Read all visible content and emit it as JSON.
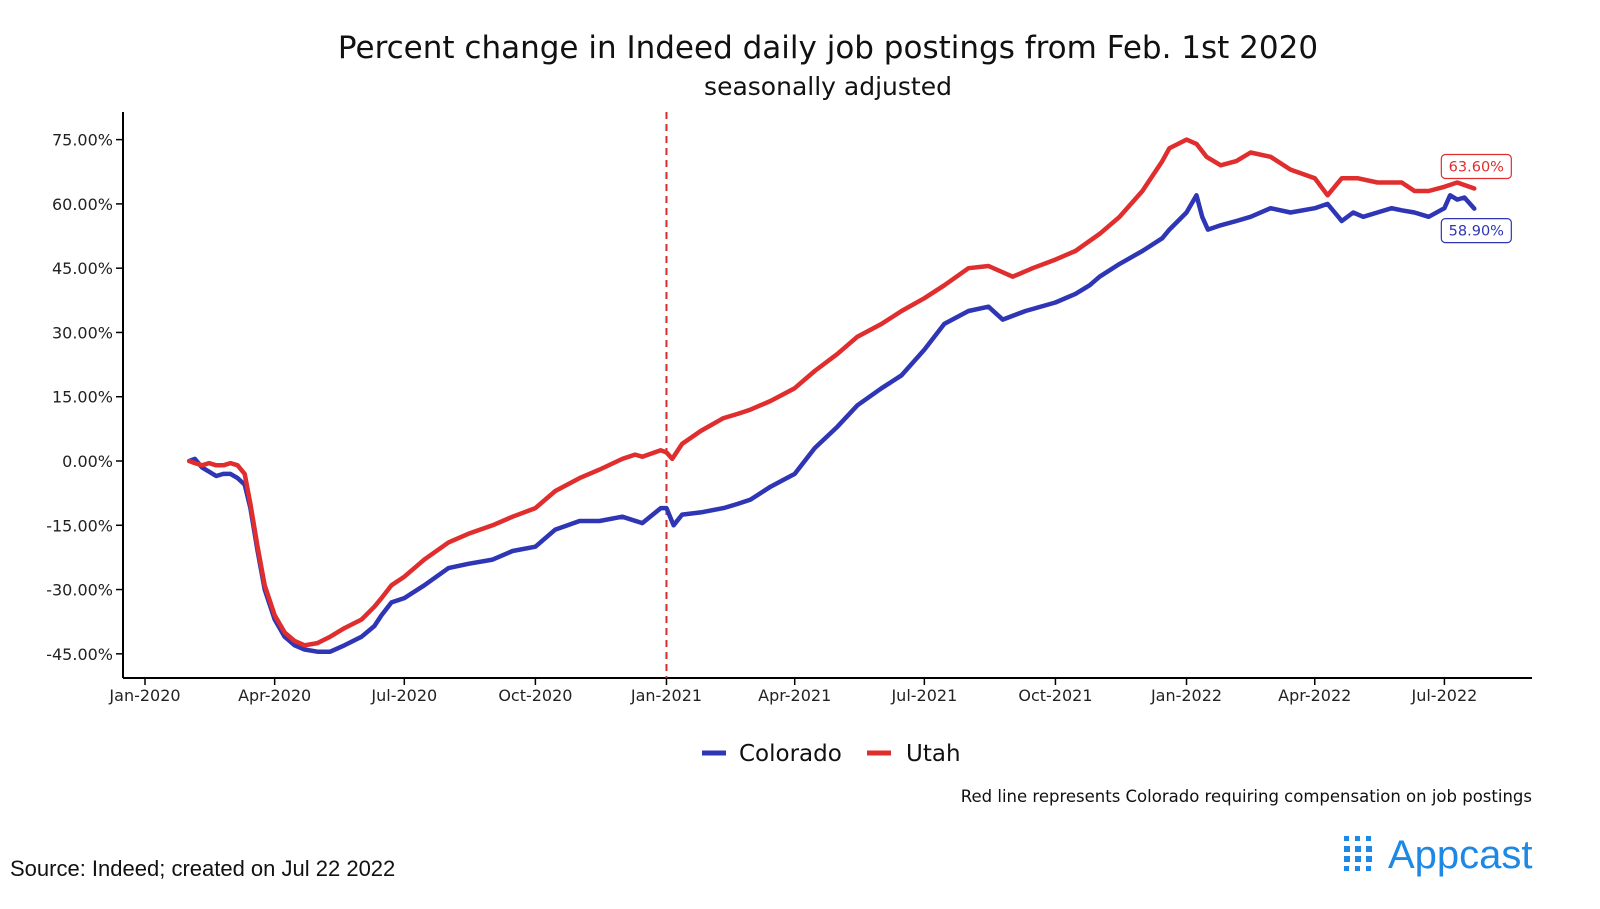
{
  "chart_data": {
    "type": "line",
    "title": "Percent change in Indeed daily job postings from Feb. 1st 2020",
    "subtitle": "seasonally adjusted",
    "xlabel": "",
    "ylabel": "",
    "x_ticks": [
      "Jan-2020",
      "Apr-2020",
      "Jul-2020",
      "Oct-2020",
      "Jan-2021",
      "Apr-2021",
      "Jul-2021",
      "Oct-2021",
      "Jan-2022",
      "Apr-2022",
      "Jul-2022"
    ],
    "y_ticks": [
      "75.00%",
      "60.00%",
      "45.00%",
      "30.00%",
      "15.00%",
      "0.00%",
      "-15.00%",
      "-30.00%",
      "-45.00%"
    ],
    "xlim": [
      "2020-01-01",
      "2022-08-02"
    ],
    "ylim": [
      -50,
      82
    ],
    "grid": false,
    "legend_position": "bottom",
    "reference_line": {
      "x": "2021-01-01",
      "color": "#d32f2f",
      "style": "dashed"
    },
    "series": [
      {
        "name": "Colorado",
        "color": "#2f36b5",
        "points": [
          [
            "2020-02-01",
            0
          ],
          [
            "2020-02-05",
            0.5
          ],
          [
            "2020-02-10",
            -1.5
          ],
          [
            "2020-02-15",
            -2.5
          ],
          [
            "2020-02-20",
            -3.5
          ],
          [
            "2020-02-25",
            -3
          ],
          [
            "2020-03-01",
            -3
          ],
          [
            "2020-03-06",
            -4
          ],
          [
            "2020-03-11",
            -5.5
          ],
          [
            "2020-03-15",
            -11
          ],
          [
            "2020-03-20",
            -21
          ],
          [
            "2020-03-25",
            -30
          ],
          [
            "2020-04-01",
            -37
          ],
          [
            "2020-04-08",
            -41
          ],
          [
            "2020-04-15",
            -43
          ],
          [
            "2020-04-22",
            -44
          ],
          [
            "2020-05-01",
            -44.5
          ],
          [
            "2020-05-10",
            -44.5
          ],
          [
            "2020-05-20",
            -43
          ],
          [
            "2020-06-01",
            -41
          ],
          [
            "2020-06-10",
            -38.5
          ],
          [
            "2020-06-15",
            -36
          ],
          [
            "2020-06-22",
            -33
          ],
          [
            "2020-07-01",
            -32
          ],
          [
            "2020-07-15",
            -29
          ],
          [
            "2020-08-01",
            -25
          ],
          [
            "2020-08-15",
            -24
          ],
          [
            "2020-09-01",
            -23
          ],
          [
            "2020-09-15",
            -21
          ],
          [
            "2020-10-01",
            -20
          ],
          [
            "2020-10-15",
            -16
          ],
          [
            "2020-11-01",
            -14
          ],
          [
            "2020-11-15",
            -14
          ],
          [
            "2020-12-01",
            -13
          ],
          [
            "2020-12-15",
            -14.5
          ],
          [
            "2020-12-28",
            -11
          ],
          [
            "2021-01-01",
            -11
          ],
          [
            "2021-01-06",
            -15
          ],
          [
            "2021-01-12",
            -12.5
          ],
          [
            "2021-01-25",
            -12
          ],
          [
            "2021-02-10",
            -11
          ],
          [
            "2021-02-20",
            -10
          ],
          [
            "2021-03-01",
            -9
          ],
          [
            "2021-03-15",
            -6
          ],
          [
            "2021-04-01",
            -3
          ],
          [
            "2021-04-15",
            3
          ],
          [
            "2021-05-01",
            8
          ],
          [
            "2021-05-15",
            13
          ],
          [
            "2021-06-01",
            17
          ],
          [
            "2021-06-15",
            20
          ],
          [
            "2021-07-01",
            26
          ],
          [
            "2021-07-15",
            32
          ],
          [
            "2021-08-01",
            35
          ],
          [
            "2021-08-15",
            36
          ],
          [
            "2021-08-25",
            33
          ],
          [
            "2021-09-10",
            35
          ],
          [
            "2021-10-01",
            37
          ],
          [
            "2021-10-15",
            39
          ],
          [
            "2021-10-25",
            41
          ],
          [
            "2021-11-01",
            43
          ],
          [
            "2021-11-15",
            46
          ],
          [
            "2021-12-01",
            49
          ],
          [
            "2021-12-15",
            52
          ],
          [
            "2021-12-20",
            54
          ],
          [
            "2022-01-01",
            58
          ],
          [
            "2022-01-08",
            62
          ],
          [
            "2022-01-12",
            57
          ],
          [
            "2022-01-16",
            54
          ],
          [
            "2022-01-25",
            55
          ],
          [
            "2022-02-05",
            56
          ],
          [
            "2022-02-15",
            57
          ],
          [
            "2022-03-01",
            59
          ],
          [
            "2022-03-15",
            58
          ],
          [
            "2022-04-01",
            59
          ],
          [
            "2022-04-10",
            60
          ],
          [
            "2022-04-15",
            58
          ],
          [
            "2022-04-20",
            56
          ],
          [
            "2022-04-28",
            58
          ],
          [
            "2022-05-05",
            57
          ],
          [
            "2022-05-15",
            58
          ],
          [
            "2022-05-25",
            59
          ],
          [
            "2022-06-01",
            58.5
          ],
          [
            "2022-06-10",
            58
          ],
          [
            "2022-06-20",
            57
          ],
          [
            "2022-07-01",
            59
          ],
          [
            "2022-07-05",
            62
          ],
          [
            "2022-07-10",
            61
          ],
          [
            "2022-07-15",
            61.5
          ],
          [
            "2022-07-22",
            58.9
          ]
        ]
      },
      {
        "name": "Utah",
        "color": "#e02d2d",
        "points": [
          [
            "2020-02-01",
            0
          ],
          [
            "2020-02-05",
            -0.5
          ],
          [
            "2020-02-10",
            -1
          ],
          [
            "2020-02-15",
            -0.5
          ],
          [
            "2020-02-20",
            -1
          ],
          [
            "2020-02-25",
            -1
          ],
          [
            "2020-03-01",
            -0.5
          ],
          [
            "2020-03-06",
            -1
          ],
          [
            "2020-03-11",
            -3
          ],
          [
            "2020-03-15",
            -10
          ],
          [
            "2020-03-20",
            -20
          ],
          [
            "2020-03-25",
            -29
          ],
          [
            "2020-04-01",
            -36
          ],
          [
            "2020-04-08",
            -40
          ],
          [
            "2020-04-15",
            -42
          ],
          [
            "2020-04-22",
            -43
          ],
          [
            "2020-05-01",
            -42.5
          ],
          [
            "2020-05-10",
            -41
          ],
          [
            "2020-05-20",
            -39
          ],
          [
            "2020-06-01",
            -37
          ],
          [
            "2020-06-10",
            -34
          ],
          [
            "2020-06-15",
            -32
          ],
          [
            "2020-06-22",
            -29
          ],
          [
            "2020-07-01",
            -27
          ],
          [
            "2020-07-15",
            -23
          ],
          [
            "2020-08-01",
            -19
          ],
          [
            "2020-08-15",
            -17
          ],
          [
            "2020-09-01",
            -15
          ],
          [
            "2020-09-15",
            -13
          ],
          [
            "2020-10-01",
            -11
          ],
          [
            "2020-10-15",
            -7
          ],
          [
            "2020-11-01",
            -4
          ],
          [
            "2020-11-15",
            -2
          ],
          [
            "2020-12-01",
            0.5
          ],
          [
            "2020-12-10",
            1.5
          ],
          [
            "2020-12-15",
            1
          ],
          [
            "2020-12-28",
            2.5
          ],
          [
            "2021-01-01",
            2
          ],
          [
            "2021-01-05",
            0.5
          ],
          [
            "2021-01-12",
            4
          ],
          [
            "2021-01-25",
            7
          ],
          [
            "2021-02-10",
            10
          ],
          [
            "2021-02-20",
            11
          ],
          [
            "2021-03-01",
            12
          ],
          [
            "2021-03-15",
            14
          ],
          [
            "2021-04-01",
            17
          ],
          [
            "2021-04-15",
            21
          ],
          [
            "2021-05-01",
            25
          ],
          [
            "2021-05-15",
            29
          ],
          [
            "2021-06-01",
            32
          ],
          [
            "2021-06-15",
            35
          ],
          [
            "2021-07-01",
            38
          ],
          [
            "2021-07-15",
            41
          ],
          [
            "2021-08-01",
            45
          ],
          [
            "2021-08-15",
            45.5
          ],
          [
            "2021-09-01",
            43
          ],
          [
            "2021-09-15",
            45
          ],
          [
            "2021-10-01",
            47
          ],
          [
            "2021-10-15",
            49
          ],
          [
            "2021-11-01",
            53
          ],
          [
            "2021-11-15",
            57
          ],
          [
            "2021-12-01",
            63
          ],
          [
            "2021-12-15",
            70
          ],
          [
            "2021-12-20",
            73
          ],
          [
            "2022-01-01",
            75
          ],
          [
            "2022-01-08",
            74
          ],
          [
            "2022-01-15",
            71
          ],
          [
            "2022-01-25",
            69
          ],
          [
            "2022-02-05",
            70
          ],
          [
            "2022-02-15",
            72
          ],
          [
            "2022-03-01",
            71
          ],
          [
            "2022-03-15",
            68
          ],
          [
            "2022-04-01",
            66
          ],
          [
            "2022-04-10",
            62
          ],
          [
            "2022-04-20",
            66
          ],
          [
            "2022-05-01",
            66
          ],
          [
            "2022-05-15",
            65
          ],
          [
            "2022-06-01",
            65
          ],
          [
            "2022-06-10",
            63
          ],
          [
            "2022-06-20",
            63
          ],
          [
            "2022-07-01",
            64
          ],
          [
            "2022-07-10",
            65
          ],
          [
            "2022-07-22",
            63.6
          ]
        ]
      }
    ],
    "end_labels": [
      {
        "series": "Utah",
        "text": "63.60%",
        "color": "#e02d2d"
      },
      {
        "series": "Colorado",
        "text": "58.90%",
        "color": "#2f36b5"
      }
    ],
    "note": "Red line represents Colorado requiring compensation on job postings"
  },
  "footer": {
    "source": "Source: Indeed; created on Jul 22 2022",
    "brand": "Appcast",
    "brand_color": "#1e88e5",
    "brand_icon": "grid-logo-icon"
  }
}
